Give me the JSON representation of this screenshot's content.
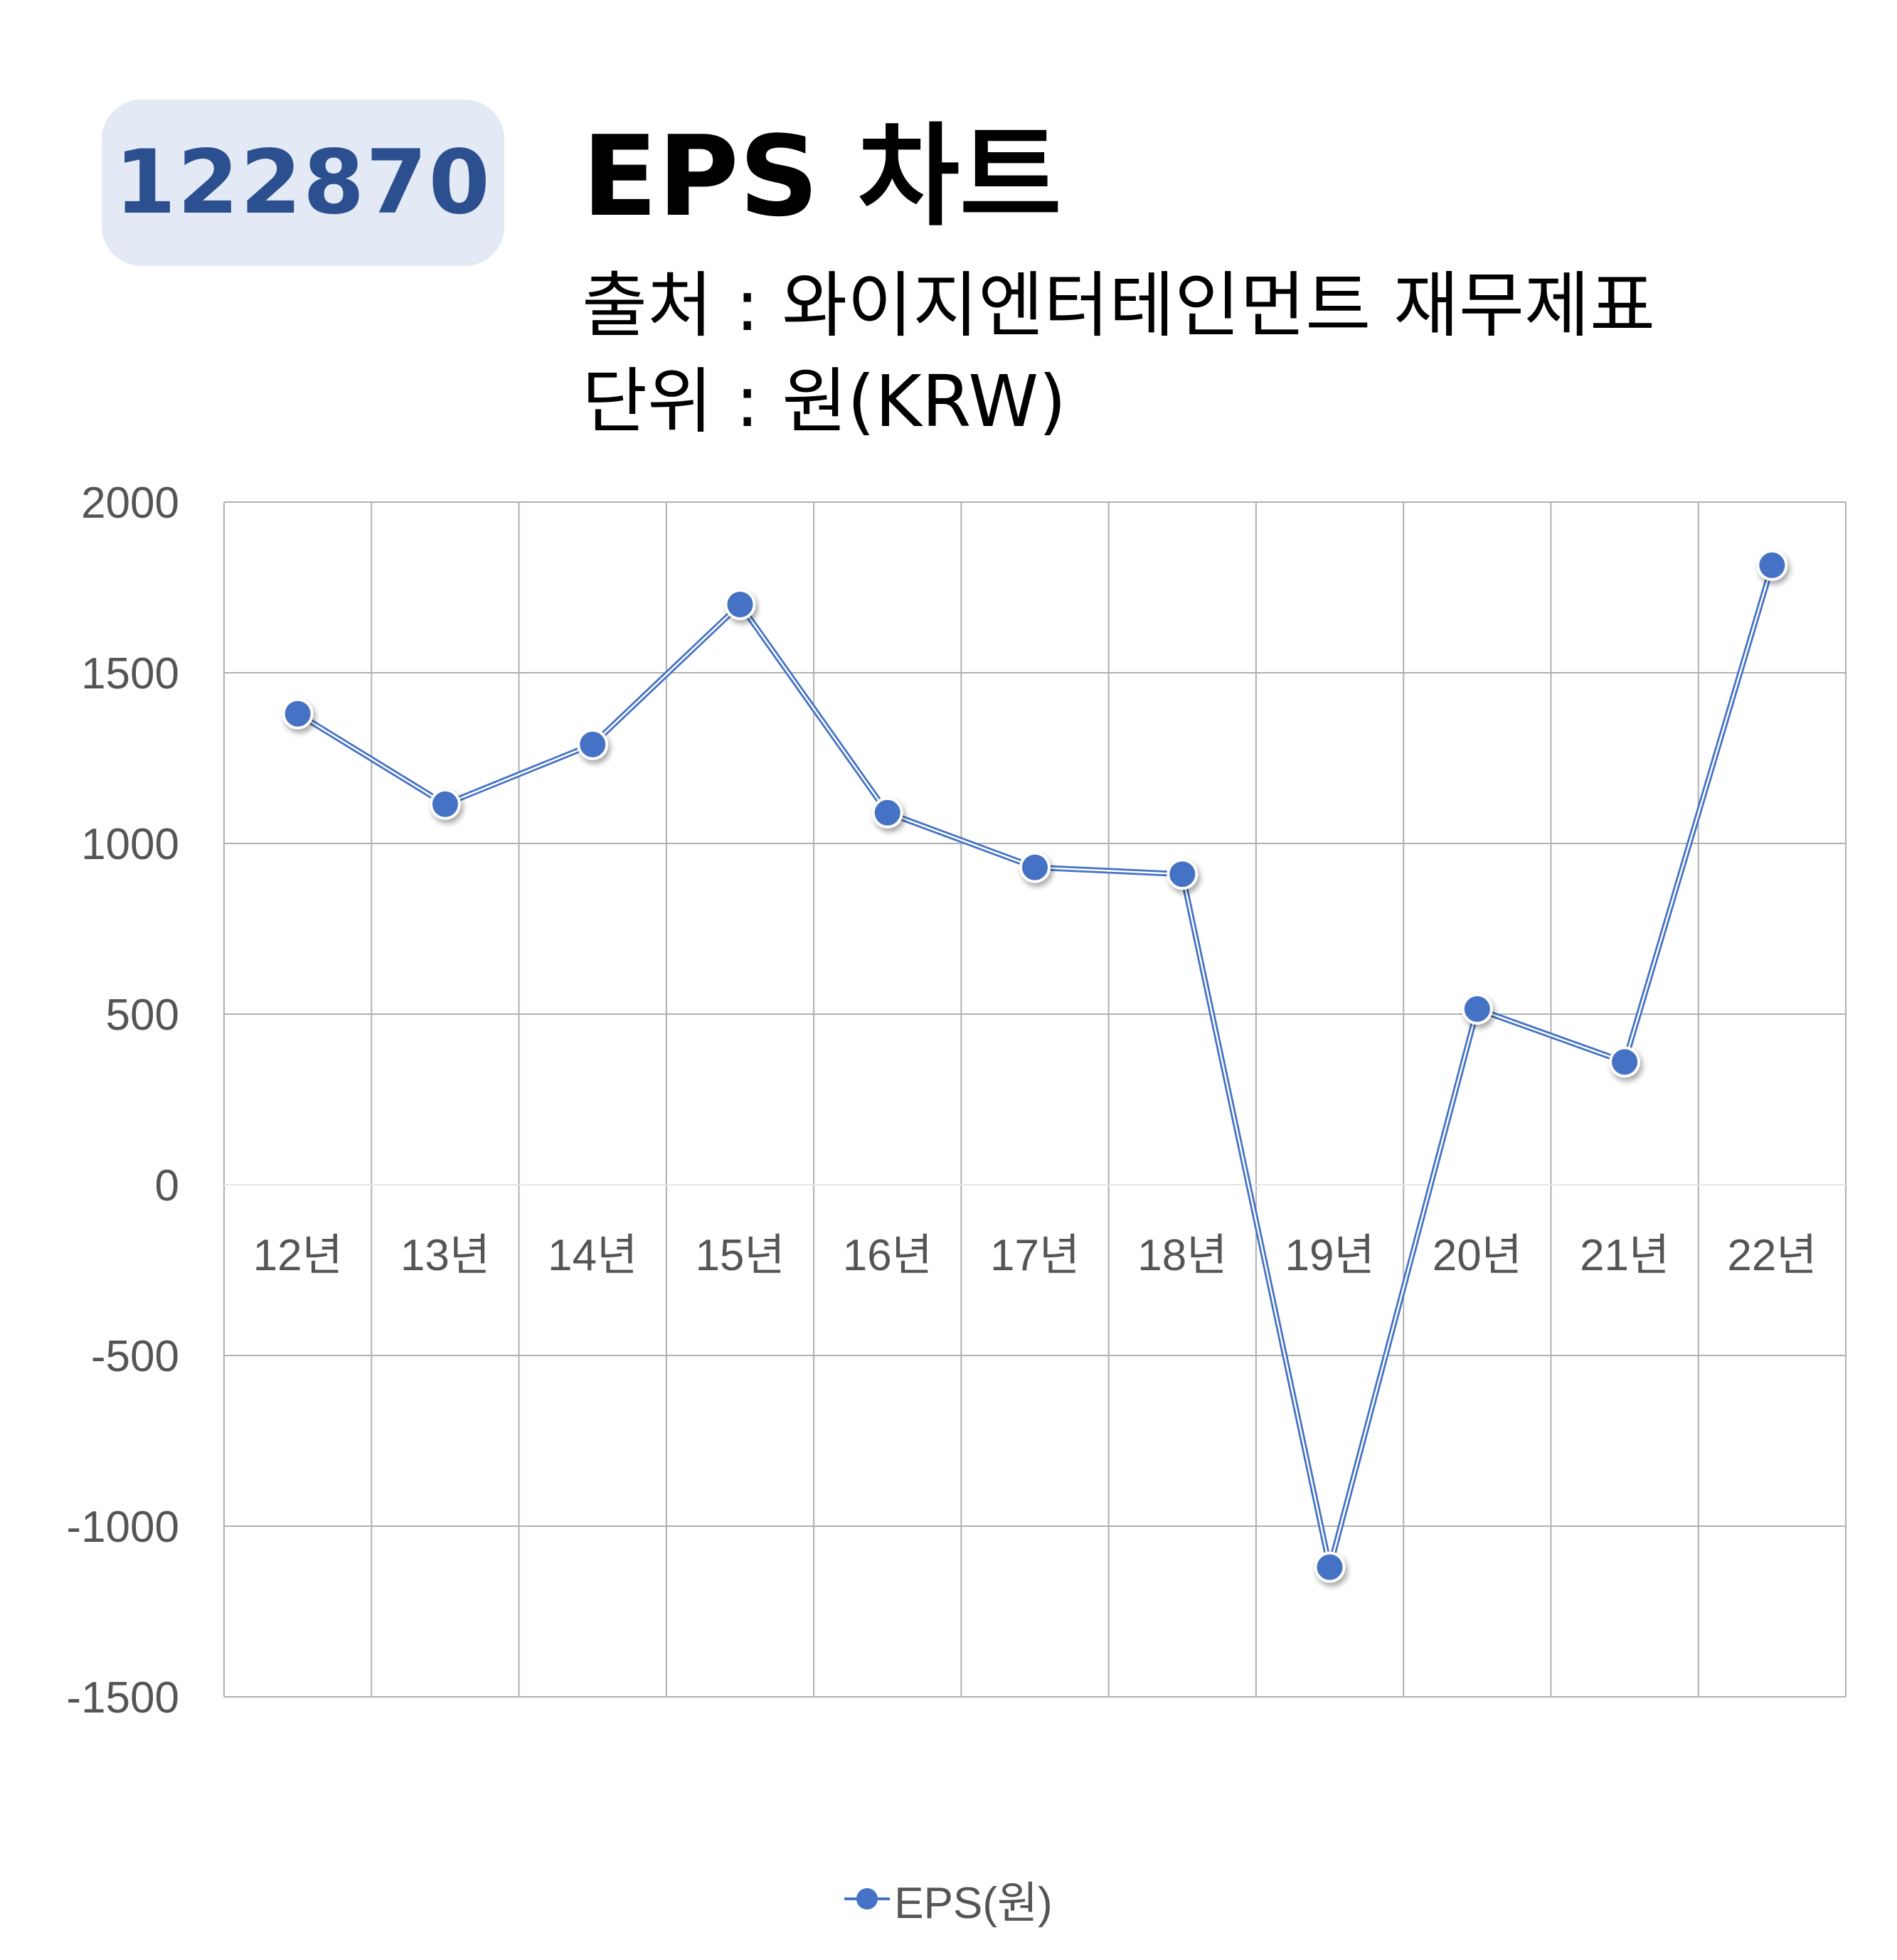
{
  "header": {
    "code": "122870",
    "title": "EPS 차트",
    "source_line": "출처 : 와이지엔터테인먼트 재무제표",
    "unit_line": "단위 : 원(KRW)"
  },
  "colors": {
    "badge_bg": "#e3e9f5",
    "badge_text": "#2c4f8f",
    "series": "#4472c4",
    "grid": "#b0b0b0"
  },
  "chart_data": {
    "type": "line",
    "categories": [
      "12년",
      "13년",
      "14년",
      "15년",
      "16년",
      "17년",
      "18년",
      "19년",
      "20년",
      "21년",
      "22년"
    ],
    "series": [
      {
        "name": "EPS(원)",
        "values": [
          1380,
          1115,
          1290,
          1700,
          1090,
          930,
          910,
          -1120,
          515,
          360,
          1815
        ]
      }
    ],
    "y_ticks": [
      "2000",
      "1500",
      "1000",
      "500",
      "0",
      "-500",
      "-1000",
      "-1500"
    ],
    "ylim": [
      -1500,
      2000
    ],
    "grid": true,
    "legend": "bottom",
    "title": "",
    "xlabel": "",
    "ylabel": ""
  }
}
